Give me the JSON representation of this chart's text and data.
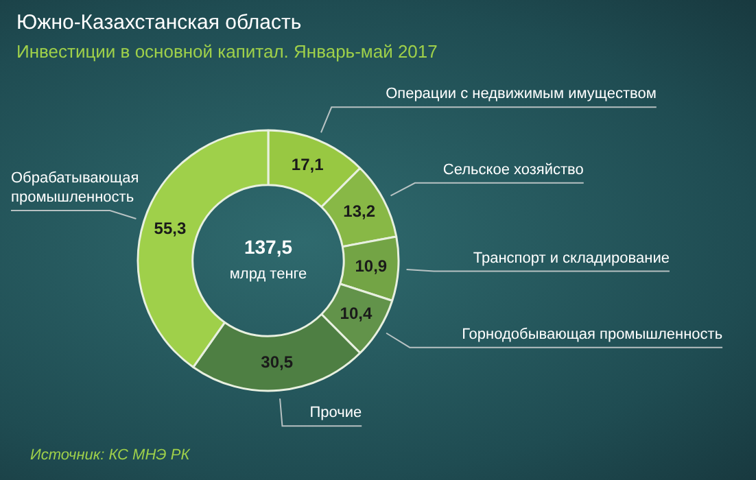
{
  "chart_data": {
    "type": "donut",
    "title": "Южно-Казахстанская область",
    "subtitle": "Инвестиции в основной капитал. Январь-май 2017",
    "categories": [
      "Операции с недвижимым имуществом",
      "Сельское хозяйство",
      "Транспорт и складирование",
      "Горнодобывающая промышленность",
      "Прочие",
      "Обрабатывающая промышленность"
    ],
    "values": [
      17.1,
      13.2,
      10.9,
      10.4,
      30.5,
      55.3
    ],
    "value_labels": [
      "17,1",
      "13,2",
      "10,9",
      "10,4",
      "30,5",
      "55,3"
    ],
    "colors": [
      "#98c842",
      "#88b846",
      "#73a445",
      "#62934a",
      "#4e7f43",
      "#9fd04a"
    ],
    "annotations": [
      "137,5",
      "млрд тенге",
      "Источник: КС МНЭ РК"
    ],
    "legend": false
  }
}
